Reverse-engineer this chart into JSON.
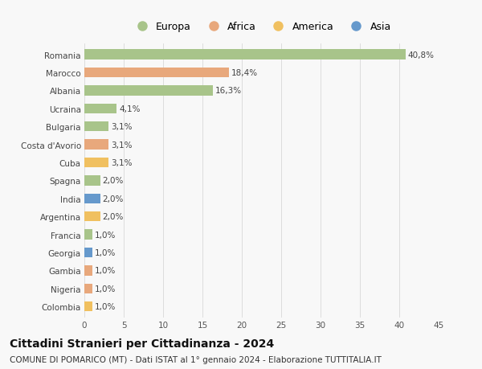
{
  "countries": [
    "Romania",
    "Marocco",
    "Albania",
    "Ucraina",
    "Bulgaria",
    "Costa d'Avorio",
    "Cuba",
    "Spagna",
    "India",
    "Argentina",
    "Francia",
    "Georgia",
    "Gambia",
    "Nigeria",
    "Colombia"
  ],
  "values": [
    40.8,
    18.4,
    16.3,
    4.1,
    3.1,
    3.1,
    3.1,
    2.0,
    2.0,
    2.0,
    1.0,
    1.0,
    1.0,
    1.0,
    1.0
  ],
  "labels": [
    "40,8%",
    "18,4%",
    "16,3%",
    "4,1%",
    "3,1%",
    "3,1%",
    "3,1%",
    "2,0%",
    "2,0%",
    "2,0%",
    "1,0%",
    "1,0%",
    "1,0%",
    "1,0%",
    "1,0%"
  ],
  "continents": [
    "Europa",
    "Africa",
    "Europa",
    "Europa",
    "Europa",
    "Africa",
    "America",
    "Europa",
    "Asia",
    "America",
    "Europa",
    "Asia",
    "Africa",
    "Africa",
    "America"
  ],
  "colors": {
    "Europa": "#a8c48a",
    "Africa": "#e8a87c",
    "America": "#f0c060",
    "Asia": "#6699cc"
  },
  "xlim": [
    0,
    45
  ],
  "xticks": [
    0,
    5,
    10,
    15,
    20,
    25,
    30,
    35,
    40,
    45
  ],
  "title": "Cittadini Stranieri per Cittadinanza - 2024",
  "subtitle": "COMUNE DI POMARICO (MT) - Dati ISTAT al 1° gennaio 2024 - Elaborazione TUTTITALIA.IT",
  "bg_color": "#f8f8f8",
  "bar_height": 0.55,
  "grid_color": "#d8d8d8",
  "label_fontsize": 7.5,
  "tick_fontsize": 7.5,
  "title_fontsize": 10,
  "subtitle_fontsize": 7.5,
  "legend_order": [
    "Europa",
    "Africa",
    "America",
    "Asia"
  ]
}
